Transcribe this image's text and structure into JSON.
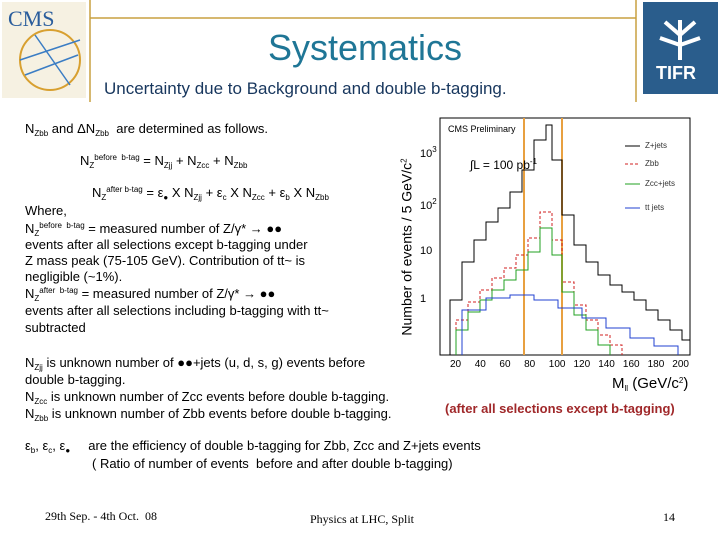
{
  "header": {
    "title": "Systematics",
    "subtitle": "Uncertainty due to Background and double b-tagging.",
    "left_logo": "CMS",
    "right_logo": "TIFR"
  },
  "body": {
    "lines": [
      [
        "N",
        {
          "sub": "Zbb"
        },
        " and ΔN",
        {
          "sub": "Zbb"
        },
        "  are determined as follows."
      ],
      [
        "N",
        {
          "sub": "Z"
        },
        {
          "sup": "before  b-tag"
        },
        " = N",
        {
          "sub": "Zjj"
        },
        " + N",
        {
          "sub": "Zcc"
        },
        " + N",
        {
          "sub": "Zbb"
        }
      ],
      [
        "N",
        {
          "sub": "Z"
        },
        {
          "sup": "after b-tag"
        },
        " = ε",
        {
          "sub": "●"
        },
        " X N",
        {
          "sub": "Zjj"
        },
        " + ε",
        {
          "sub": "c"
        },
        " X N",
        {
          "sub": "Zcc"
        },
        " + ε",
        {
          "sub": "b"
        },
        " X N",
        {
          "sub": "Zbb"
        }
      ],
      [
        "Where,"
      ],
      [
        "N",
        {
          "sub": "Z"
        },
        {
          "sup": "before  b-tag"
        },
        " = measured number of Z/γ* → ●●"
      ],
      [
        "events after all selections except b-tagging under"
      ],
      [
        "Z mass peak (75-105 GeV). Contribution of tt~ is"
      ],
      [
        "negligible (~1%)."
      ],
      [
        "N",
        {
          "sub": "Z"
        },
        {
          "sup": "after  b-tag"
        },
        " = measured number of Z/γ* → ●●"
      ],
      [
        "events after all selections including b-tagging with tt~"
      ],
      [
        "subtracted"
      ],
      [
        "N",
        {
          "sub": "Zjj"
        },
        " is unknown number of ●●+jets (u, d, s, g) events before"
      ],
      [
        "double b-tagging."
      ],
      [
        "N",
        {
          "sub": "Zcc"
        },
        " is unknown number of Zcc events before double b-tagging."
      ],
      [
        "N",
        {
          "sub": "Zbb"
        },
        " is unknown number of Zbb events before double b-tagging."
      ],
      [
        "ε",
        {
          "sub": "b"
        },
        ", ε",
        {
          "sub": "c"
        },
        ", ε",
        {
          "sub": "●"
        },
        "     are the efficiency of double b-tagging for Zbb, Zcc and Z+jets events"
      ],
      [
        "( Ratio of number of events  before and after double b-tagging)"
      ]
    ],
    "note": "(after all selections except b-tagging)"
  },
  "figure": {
    "label": "CMS Preliminary",
    "luminosity": [
      "∫L = 100 pb",
      {
        "sup": "-1"
      }
    ],
    "legend": [
      "Z+jets",
      "Zbb",
      "Zcc+jets",
      "tt jets"
    ],
    "y_label": [
      "Number of events / 5 GeV/c",
      {
        "sup": "2"
      }
    ],
    "x_label": [
      "M",
      {
        "sub": "ll"
      },
      " (GeV/c",
      {
        "sup": "2"
      },
      ")"
    ],
    "y_ticks": [
      [
        "10",
        {
          "sup": "3"
        }
      ],
      [
        "10",
        {
          "sup": "2"
        }
      ],
      [
        "10"
      ],
      [
        "1"
      ]
    ],
    "x_ticks": [
      20,
      40,
      60,
      80,
      100,
      120,
      140,
      160,
      180,
      200
    ]
  },
  "footer": {
    "date": "29th Sep. - 4th Oct.  08",
    "event": "Physics at LHC, Split",
    "page": "14"
  }
}
